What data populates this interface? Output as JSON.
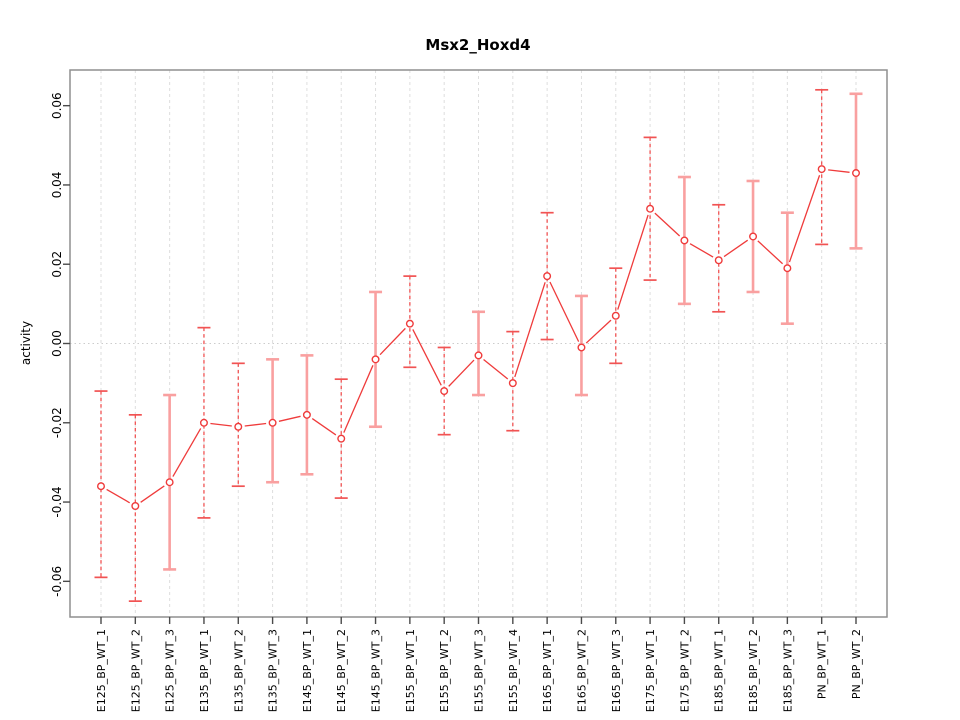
{
  "page": {
    "background": "#ffffff"
  },
  "chart_data": {
    "type": "scatter",
    "title": "Msx2_Hoxd4",
    "xlabel": "",
    "ylabel": "activity",
    "ylim": [
      -0.069,
      0.069
    ],
    "yticks": [
      -0.06,
      -0.04,
      -0.02,
      0.0,
      0.02,
      0.04,
      0.06
    ],
    "ytick_labels": [
      "-0.06",
      "-0.04",
      "-0.02",
      "0.00",
      "0.02",
      "0.04",
      "0.06"
    ],
    "grid": {
      "vertical_gridlines": true,
      "horizontal_gridlines": false,
      "zero_line_dotted": true
    },
    "legend": "none",
    "categories": [
      "E125_BP_WT_1",
      "E125_BP_WT_2",
      "E125_BP_WT_3",
      "E135_BP_WT_1",
      "E135_BP_WT_2",
      "E135_BP_WT_3",
      "E145_BP_WT_1",
      "E145_BP_WT_2",
      "E145_BP_WT_3",
      "E155_BP_WT_1",
      "E155_BP_WT_2",
      "E155_BP_WT_3",
      "E155_BP_WT_4",
      "E165_BP_WT_1",
      "E165_BP_WT_2",
      "E165_BP_WT_3",
      "E175_BP_WT_1",
      "E175_BP_WT_2",
      "E185_BP_WT_1",
      "E185_BP_WT_2",
      "E185_BP_WT_3",
      "PN_BP_WT_1",
      "PN_BP_WT_2"
    ],
    "series": [
      {
        "name": "activity",
        "marker": "open-circle",
        "connected": true,
        "values": [
          -0.036,
          -0.041,
          -0.035,
          -0.02,
          -0.021,
          -0.02,
          -0.018,
          -0.024,
          -0.004,
          0.005,
          -0.012,
          -0.003,
          -0.01,
          0.017,
          -0.001,
          0.007,
          0.034,
          0.026,
          0.021,
          0.027,
          0.019,
          0.044,
          0.043
        ],
        "err_lo": [
          -0.059,
          -0.065,
          -0.057,
          -0.044,
          -0.036,
          -0.035,
          -0.033,
          -0.039,
          -0.021,
          -0.006,
          -0.023,
          -0.013,
          -0.022,
          0.001,
          -0.013,
          -0.005,
          0.016,
          0.01,
          0.008,
          0.013,
          0.005,
          0.025,
          0.024
        ],
        "err_hi": [
          -0.012,
          -0.018,
          -0.013,
          0.004,
          -0.005,
          -0.004,
          -0.003,
          -0.009,
          0.013,
          0.017,
          -0.001,
          0.008,
          0.003,
          0.033,
          0.012,
          0.019,
          0.052,
          0.042,
          0.035,
          0.041,
          0.033,
          0.064,
          0.063
        ],
        "bar_style": [
          "dashed",
          "dashed",
          "solid",
          "dashed",
          "dashed",
          "solid",
          "solid",
          "dashed",
          "solid",
          "dashed",
          "dashed",
          "solid",
          "dashed",
          "dashed",
          "solid",
          "dashed",
          "dashed",
          "solid",
          "dashed",
          "solid",
          "solid",
          "dashed",
          "solid"
        ]
      }
    ],
    "colors": {
      "series": "#ef3b3b",
      "error_dashed": "#f15353",
      "error_solid": "#f9a0a0",
      "grid": "#dedede",
      "zero_line": "#cccccc",
      "box": "#8f8f8f",
      "tick": "#4a4a4a",
      "text": "#000000"
    }
  }
}
